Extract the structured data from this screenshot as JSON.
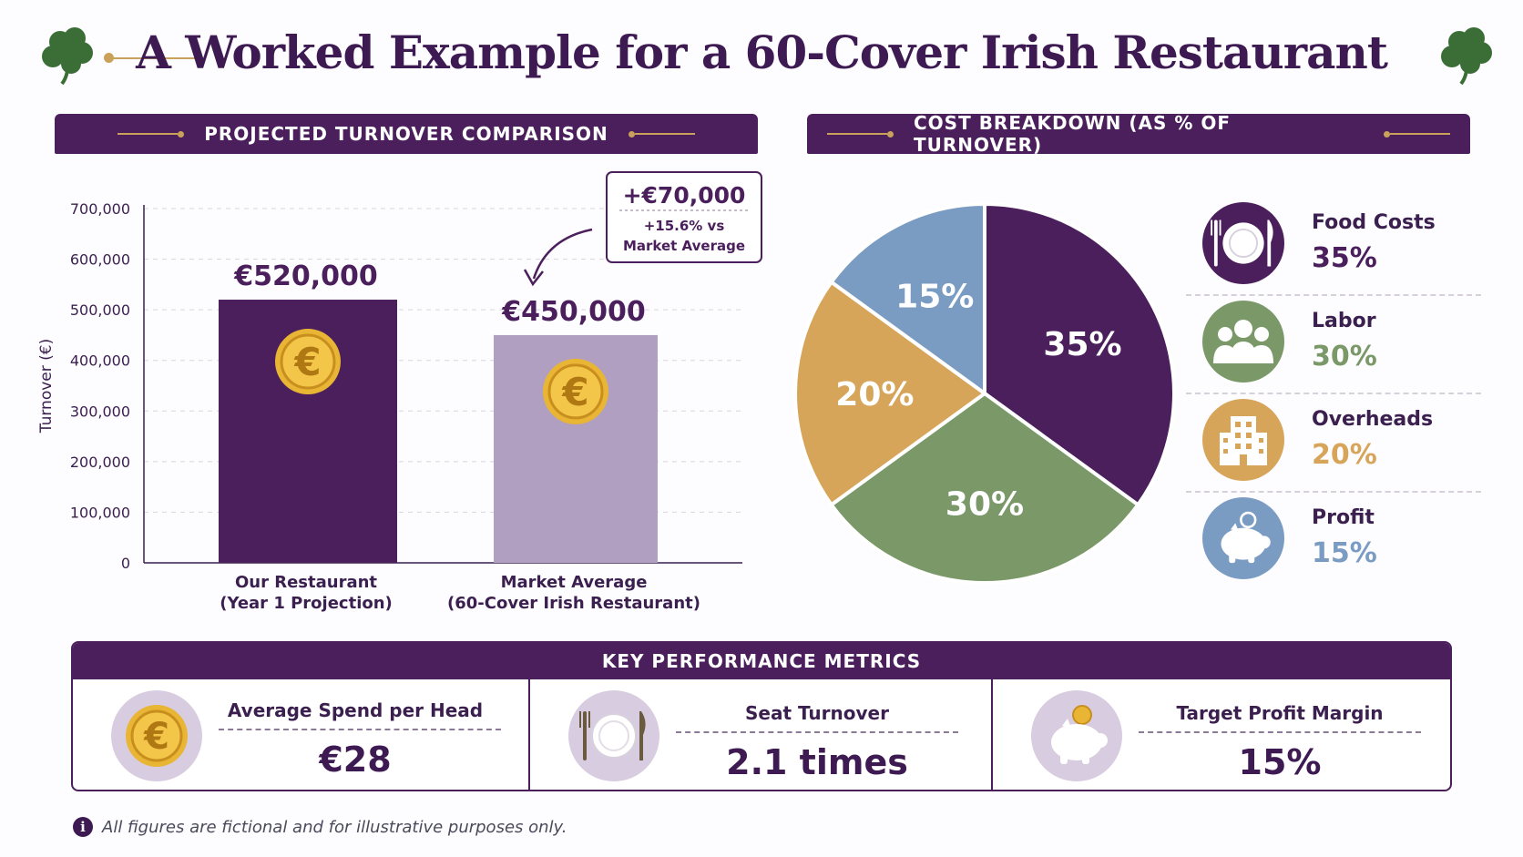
{
  "title": "A Worked Example for a 60-Cover Irish Restaurant",
  "colors": {
    "purple": "#4a1f5c",
    "lilac": "#b09fc0",
    "gold": "#c9a15a",
    "green": "#7a9868",
    "orange": "#d7a55a",
    "blue": "#7b9cc2"
  },
  "turnover_section": {
    "heading": "PROJECTED TURNOVER COMPARISON"
  },
  "cost_section": {
    "heading": "COST BREAKDOWN (AS % OF TURNOVER)"
  },
  "callout": {
    "amount": "+€70,000",
    "line1": "+15.6% vs",
    "line2": "Market Average"
  },
  "chart_data": [
    {
      "type": "bar",
      "ylabel": "Turnover (€)",
      "ylim": [
        0,
        700000
      ],
      "yticks": [
        "0",
        "100,000",
        "200,000",
        "300,000",
        "400,000",
        "500,000",
        "600,000",
        "700,000"
      ],
      "grid": true,
      "categories": [
        [
          "Our Restaurant",
          "(Year 1 Projection)"
        ],
        [
          "Market Average",
          "(60-Cover Irish Restaurant)"
        ]
      ],
      "values": [
        520000,
        450000
      ],
      "data_labels": [
        "€520,000",
        "€450,000"
      ]
    },
    {
      "type": "pie",
      "slices": [
        {
          "label": "Food Costs",
          "value": 35,
          "display": "35%"
        },
        {
          "label": "Labor",
          "value": 30,
          "display": "30%"
        },
        {
          "label": "Overheads",
          "value": 20,
          "display": "20%"
        },
        {
          "label": "Profit",
          "value": 15,
          "display": "15%"
        }
      ]
    }
  ],
  "legend": [
    {
      "label": "Food Costs",
      "value": "35%",
      "icon": "plate-cutlery-icon"
    },
    {
      "label": "Labor",
      "value": "30%",
      "icon": "people-icon"
    },
    {
      "label": "Overheads",
      "value": "20%",
      "icon": "building-icon"
    },
    {
      "label": "Profit",
      "value": "15%",
      "icon": "piggy-bank-icon"
    }
  ],
  "kpis": {
    "heading": "KEY PERFORMANCE METRICS",
    "items": [
      {
        "label": "Average Spend per Head",
        "value": "€28",
        "icon": "euro-coin-icon"
      },
      {
        "label": "Seat Turnover",
        "value": "2.1 times",
        "icon": "plate-cutlery-icon"
      },
      {
        "label": "Target Profit Margin",
        "value": "15%",
        "icon": "piggy-bank-icon"
      }
    ]
  },
  "footnote": "All figures are fictional and for illustrative purposes only."
}
